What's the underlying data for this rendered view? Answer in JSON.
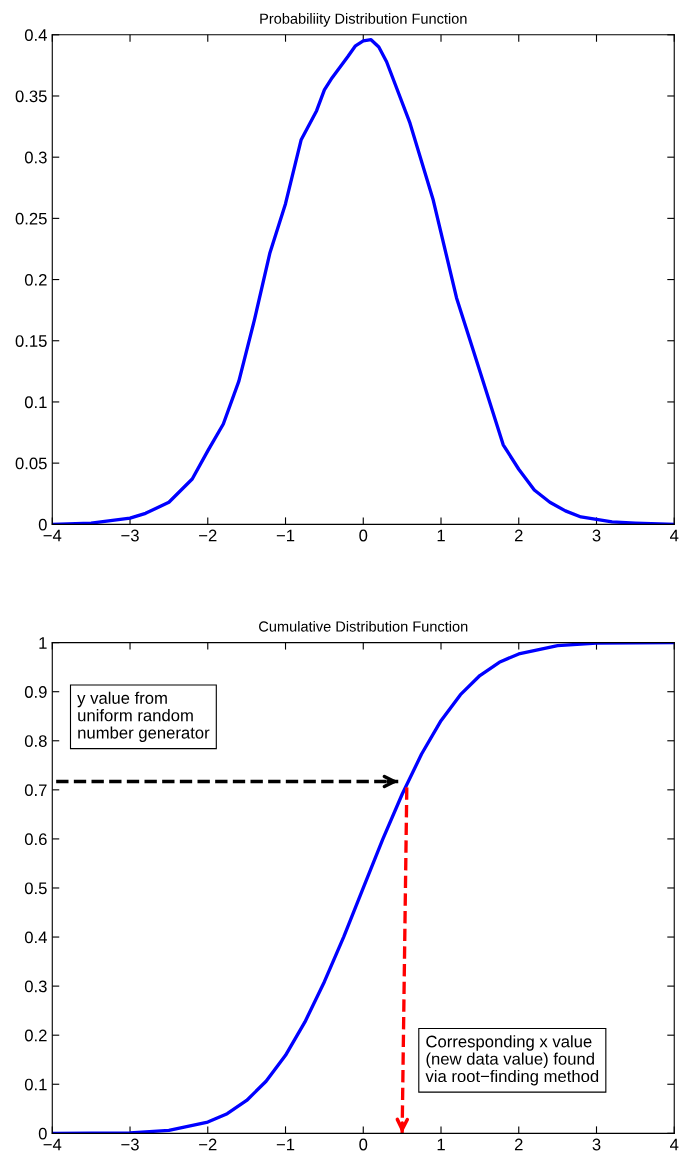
{
  "chart_data": [
    {
      "type": "line",
      "title": "Probabiliity Distribution Function",
      "xlim": [
        -4,
        4
      ],
      "ylim": [
        0,
        0.4
      ],
      "xticks": [
        {
          "value": -4,
          "label": "−4"
        },
        {
          "value": -3,
          "label": "−3"
        },
        {
          "value": -2,
          "label": "−2"
        },
        {
          "value": -1,
          "label": "−1"
        },
        0,
        1,
        2,
        3,
        4
      ],
      "yticks": [
        0,
        0.05,
        0.1,
        0.15,
        0.2,
        0.25,
        0.3,
        0.35,
        0.4
      ],
      "grid": false,
      "legend": false,
      "series": [
        {
          "color": "#0000ff",
          "x": [
            -4,
            -3.5,
            -3,
            -2.8,
            -2.5,
            -2.2,
            -2,
            -1.8,
            -1.6,
            -1.4,
            -1.2,
            -1,
            -0.8,
            -0.6,
            -0.5,
            -0.4,
            -0.2,
            -0.1,
            0,
            0.1,
            0.2,
            0.3,
            0.6,
            0.9,
            1.2,
            1.4,
            1.6,
            1.8,
            2,
            2.2,
            2.4,
            2.6,
            2.8,
            3,
            3.2,
            3.5,
            4
          ],
          "values": [
            0,
            0.001,
            0.005,
            0.009,
            0.018,
            0.037,
            0.06,
            0.082,
            0.117,
            0.167,
            0.222,
            0.262,
            0.314,
            0.338,
            0.355,
            0.365,
            0.382,
            0.391,
            0.395,
            0.396,
            0.39,
            0.378,
            0.328,
            0.265,
            0.185,
            0.145,
            0.105,
            0.065,
            0.045,
            0.028,
            0.018,
            0.011,
            0.006,
            0.004,
            0.002,
            0.001,
            0
          ]
        }
      ]
    },
    {
      "type": "line",
      "title": "Cumulative Distribution Function",
      "xlim": [
        -4,
        4
      ],
      "ylim": [
        0,
        1
      ],
      "xticks": [
        {
          "value": -4,
          "label": "−4"
        },
        {
          "value": -3,
          "label": "−3"
        },
        {
          "value": -2,
          "label": "−2"
        },
        {
          "value": -1,
          "label": "−1"
        },
        0,
        1,
        2,
        3,
        4
      ],
      "yticks": [
        0,
        0.1,
        0.2,
        0.3,
        0.4,
        0.5,
        0.6,
        0.7,
        0.8,
        0.9,
        1
      ],
      "grid": false,
      "legend": false,
      "series": [
        {
          "color": "#0000ff",
          "x": [
            -4,
            -3,
            -2.5,
            -2,
            -1.75,
            -1.5,
            -1.25,
            -1,
            -0.75,
            -0.5,
            -0.25,
            0,
            0.25,
            0.5,
            0.75,
            1,
            1.25,
            1.5,
            1.75,
            2,
            2.5,
            3,
            4
          ],
          "values": [
            0,
            0.001,
            0.006,
            0.023,
            0.04,
            0.067,
            0.106,
            0.159,
            0.227,
            0.309,
            0.401,
            0.5,
            0.599,
            0.691,
            0.773,
            0.841,
            0.894,
            0.933,
            0.96,
            0.977,
            0.994,
            0.999,
            1
          ]
        },
        {
          "color": "#000000",
          "line_style": "dashed",
          "x": [
            -3.95,
            0.45
          ],
          "values": [
            0.717,
            0.717
          ]
        },
        {
          "color": "#ff0000",
          "line_style": "dashed",
          "x": [
            0.56,
            0.5
          ],
          "values": [
            0.705,
            0
          ]
        }
      ],
      "annotations": [
        "y value from\nuniform random\nnumber generator",
        "Corresponding x value\n(new data value) found\nvia root−finding method"
      ]
    }
  ]
}
